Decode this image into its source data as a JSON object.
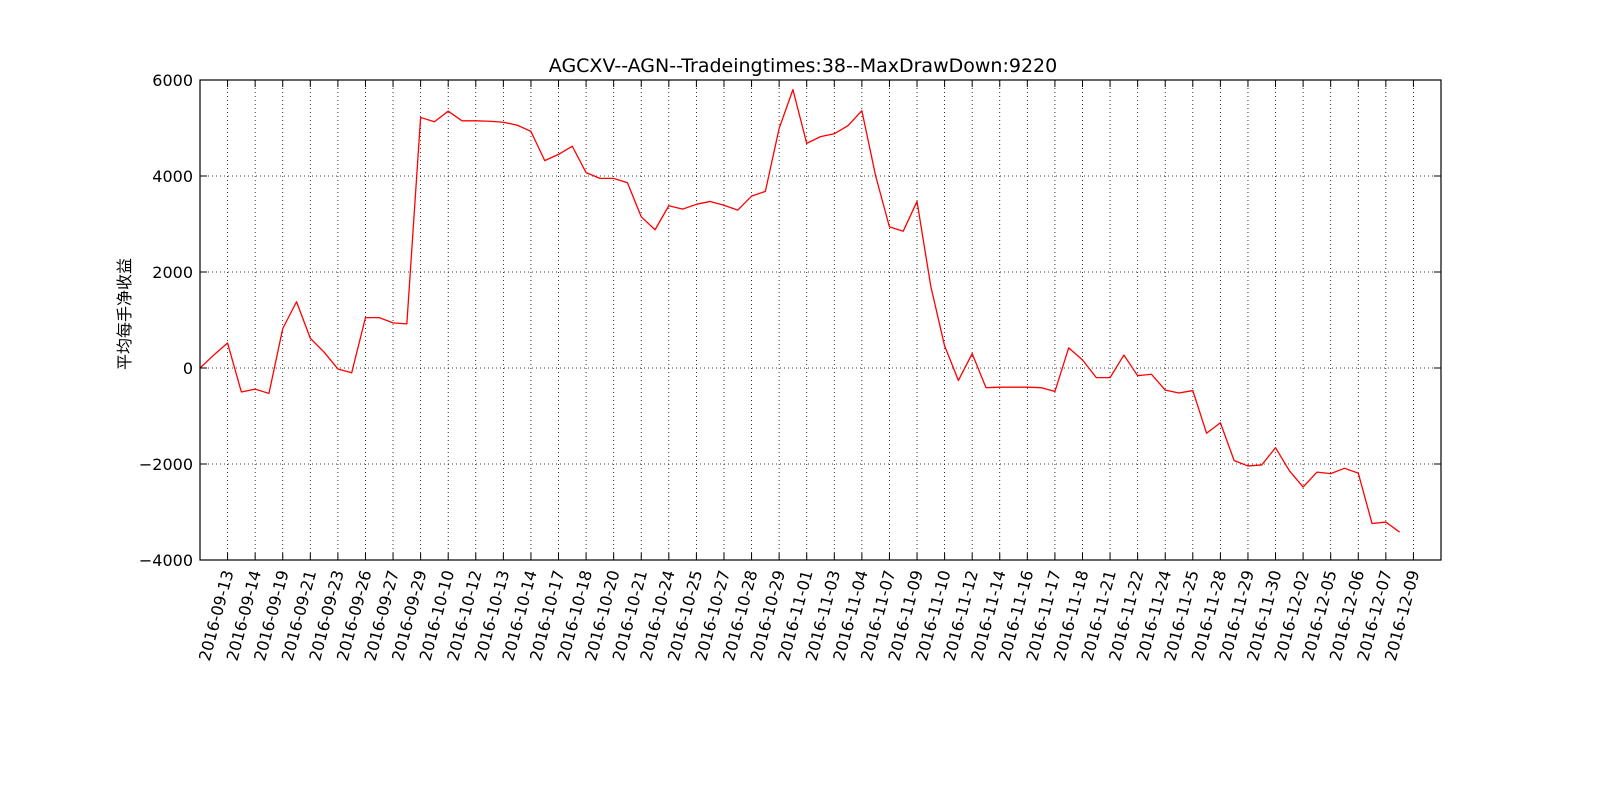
{
  "chart_data": {
    "type": "line",
    "title": "AGCXV--AGN--Tradeingtimes:38--MaxDrawDown:9220",
    "xlabel": "",
    "ylabel": "平均每手净收益",
    "ylim": [
      -4000,
      6000
    ],
    "yticks": [
      -4000,
      -2000,
      0,
      2000,
      4000,
      6000
    ],
    "xlim": [
      0,
      90
    ],
    "grid": true,
    "line_color": "#ff0000",
    "x_tick_labels": [
      "2016-09-13",
      "2016-09-14",
      "2016-09-19",
      "2016-09-21",
      "2016-09-23",
      "2016-09-26",
      "2016-09-27",
      "2016-09-29",
      "2016-10-10",
      "2016-10-12",
      "2016-10-13",
      "2016-10-14",
      "2016-10-17",
      "2016-10-18",
      "2016-10-20",
      "2016-10-21",
      "2016-10-24",
      "2016-10-25",
      "2016-10-27",
      "2016-10-28",
      "2016-10-29",
      "2016-11-01",
      "2016-11-03",
      "2016-11-04",
      "2016-11-07",
      "2016-11-09",
      "2016-11-10",
      "2016-11-12",
      "2016-11-14",
      "2016-11-16",
      "2016-11-17",
      "2016-11-18",
      "2016-11-21",
      "2016-11-22",
      "2016-11-24",
      "2016-11-25",
      "2016-11-28",
      "2016-11-29",
      "2016-11-30",
      "2016-12-02",
      "2016-12-05",
      "2016-12-06",
      "2016-12-07",
      "2016-12-09"
    ],
    "tick_every": 2,
    "series": [
      {
        "values": [
          0,
          270,
          520,
          -500,
          -440,
          -530,
          820,
          1380,
          620,
          330,
          -20,
          -100,
          1050,
          1050,
          940,
          920,
          5220,
          5130,
          5350,
          5150,
          5150,
          5140,
          5120,
          5060,
          4930,
          4320,
          4450,
          4620,
          4070,
          3950,
          3950,
          3860,
          3150,
          2880,
          3380,
          3310,
          3410,
          3470,
          3390,
          3290,
          3580,
          3680,
          4990,
          5800,
          4680,
          4820,
          4880,
          5050,
          5360,
          4000,
          2940,
          2850,
          3470,
          1700,
          460,
          -260,
          300,
          -410,
          -400,
          -400,
          -400,
          -410,
          -490,
          420,
          170,
          -200,
          -200,
          270,
          -160,
          -130,
          -460,
          -520,
          -470,
          -1360,
          -1140,
          -1930,
          -2040,
          -2020,
          -1660,
          -2140,
          -2480,
          -2170,
          -2200,
          -2090,
          -2190,
          -3240,
          -3210,
          -3420
        ]
      }
    ]
  }
}
